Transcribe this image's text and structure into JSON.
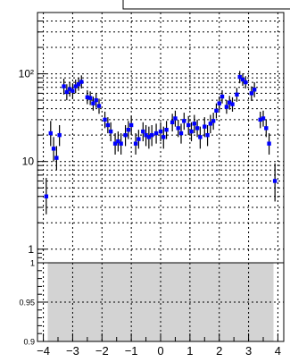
{
  "chart_data": [
    {
      "type": "scatter",
      "yscale": "log",
      "xlim": [
        -4.2,
        4.2
      ],
      "ylim": [
        0.7,
        500
      ],
      "grid": true,
      "yticks": [
        {
          "value": 1,
          "label": "1"
        },
        {
          "value": 10,
          "label": "10"
        },
        {
          "value": 100,
          "label": "10²"
        }
      ],
      "series": [
        {
          "marker_color": "#0000ff",
          "points": [
            {
              "x": -3.9,
              "y": 4.0,
              "lo": 2.5,
              "hi": 6.5
            },
            {
              "x": -3.75,
              "y": 21,
              "lo": 15,
              "hi": 29
            },
            {
              "x": -3.65,
              "y": 14,
              "lo": 10,
              "hi": 19
            },
            {
              "x": -3.55,
              "y": 11,
              "lo": 8,
              "hi": 15
            },
            {
              "x": -3.45,
              "y": 20,
              "lo": 15,
              "hi": 26
            },
            {
              "x": -3.3,
              "y": 72,
              "lo": 58,
              "hi": 88
            },
            {
              "x": -3.2,
              "y": 62,
              "lo": 50,
              "hi": 76
            },
            {
              "x": -3.1,
              "y": 67,
              "lo": 55,
              "hi": 81
            },
            {
              "x": -3.0,
              "y": 64,
              "lo": 52,
              "hi": 78
            },
            {
              "x": -2.9,
              "y": 72,
              "lo": 60,
              "hi": 86
            },
            {
              "x": -2.8,
              "y": 76,
              "lo": 64,
              "hi": 90
            },
            {
              "x": -2.7,
              "y": 81,
              "lo": 68,
              "hi": 96
            },
            {
              "x": -2.5,
              "y": 54,
              "lo": 45,
              "hi": 65
            },
            {
              "x": -2.4,
              "y": 53,
              "lo": 44,
              "hi": 63
            },
            {
              "x": -2.3,
              "y": 46,
              "lo": 38,
              "hi": 55
            },
            {
              "x": -2.2,
              "y": 50,
              "lo": 41,
              "hi": 60
            },
            {
              "x": -2.1,
              "y": 43,
              "lo": 35,
              "hi": 52
            },
            {
              "x": -1.9,
              "y": 30,
              "lo": 24,
              "hi": 37
            },
            {
              "x": -1.8,
              "y": 26,
              "lo": 21,
              "hi": 32
            },
            {
              "x": -1.7,
              "y": 22,
              "lo": 17,
              "hi": 28
            },
            {
              "x": -1.55,
              "y": 16,
              "lo": 12,
              "hi": 21
            },
            {
              "x": -1.45,
              "y": 17,
              "lo": 13,
              "hi": 22
            },
            {
              "x": -1.35,
              "y": 16,
              "lo": 12,
              "hi": 21
            },
            {
              "x": -1.2,
              "y": 20,
              "lo": 15,
              "hi": 26
            },
            {
              "x": -1.1,
              "y": 23,
              "lo": 18,
              "hi": 29
            },
            {
              "x": -1.0,
              "y": 26,
              "lo": 20,
              "hi": 33
            },
            {
              "x": -0.85,
              "y": 16,
              "lo": 12,
              "hi": 21
            },
            {
              "x": -0.75,
              "y": 18,
              "lo": 14,
              "hi": 23
            },
            {
              "x": -0.6,
              "y": 22,
              "lo": 17,
              "hi": 28
            },
            {
              "x": -0.5,
              "y": 20,
              "lo": 15,
              "hi": 26
            },
            {
              "x": -0.4,
              "y": 19,
              "lo": 14,
              "hi": 25
            },
            {
              "x": -0.3,
              "y": 20,
              "lo": 15,
              "hi": 26
            },
            {
              "x": -0.15,
              "y": 21,
              "lo": 16,
              "hi": 27
            },
            {
              "x": 0.0,
              "y": 22,
              "lo": 17,
              "hi": 28
            },
            {
              "x": 0.1,
              "y": 19,
              "lo": 14,
              "hi": 25
            },
            {
              "x": 0.2,
              "y": 23,
              "lo": 18,
              "hi": 29
            },
            {
              "x": 0.4,
              "y": 28,
              "lo": 22,
              "hi": 35
            },
            {
              "x": 0.5,
              "y": 31,
              "lo": 25,
              "hi": 38
            },
            {
              "x": 0.6,
              "y": 24,
              "lo": 19,
              "hi": 30
            },
            {
              "x": 0.7,
              "y": 21,
              "lo": 16,
              "hi": 27
            },
            {
              "x": 0.8,
              "y": 29,
              "lo": 23,
              "hi": 36
            },
            {
              "x": 0.95,
              "y": 26,
              "lo": 20,
              "hi": 33
            },
            {
              "x": 1.05,
              "y": 22,
              "lo": 17,
              "hi": 28
            },
            {
              "x": 1.15,
              "y": 27,
              "lo": 21,
              "hi": 34
            },
            {
              "x": 1.25,
              "y": 24,
              "lo": 19,
              "hi": 30
            },
            {
              "x": 1.35,
              "y": 19,
              "lo": 14,
              "hi": 25
            },
            {
              "x": 1.5,
              "y": 25,
              "lo": 19,
              "hi": 32
            },
            {
              "x": 1.6,
              "y": 20,
              "lo": 15,
              "hi": 26
            },
            {
              "x": 1.7,
              "y": 27,
              "lo": 21,
              "hi": 34
            },
            {
              "x": 1.8,
              "y": 29,
              "lo": 23,
              "hi": 36
            },
            {
              "x": 1.9,
              "y": 38,
              "lo": 31,
              "hi": 46
            },
            {
              "x": 2.0,
              "y": 46,
              "lo": 38,
              "hi": 55
            },
            {
              "x": 2.1,
              "y": 55,
              "lo": 46,
              "hi": 65
            },
            {
              "x": 2.25,
              "y": 42,
              "lo": 35,
              "hi": 50
            },
            {
              "x": 2.35,
              "y": 47,
              "lo": 39,
              "hi": 56
            },
            {
              "x": 2.45,
              "y": 45,
              "lo": 37,
              "hi": 54
            },
            {
              "x": 2.6,
              "y": 58,
              "lo": 48,
              "hi": 69
            },
            {
              "x": 2.7,
              "y": 92,
              "lo": 78,
              "hi": 108
            },
            {
              "x": 2.8,
              "y": 86,
              "lo": 73,
              "hi": 101
            },
            {
              "x": 2.9,
              "y": 80,
              "lo": 68,
              "hi": 94
            },
            {
              "x": 3.1,
              "y": 60,
              "lo": 49,
              "hi": 72
            },
            {
              "x": 3.2,
              "y": 66,
              "lo": 54,
              "hi": 80
            },
            {
              "x": 3.4,
              "y": 30,
              "lo": 24,
              "hi": 37
            },
            {
              "x": 3.5,
              "y": 31,
              "lo": 25,
              "hi": 38
            },
            {
              "x": 3.6,
              "y": 24,
              "lo": 19,
              "hi": 30
            },
            {
              "x": 3.7,
              "y": 16,
              "lo": 12,
              "hi": 21
            },
            {
              "x": 3.9,
              "y": 6.0,
              "lo": 3.5,
              "hi": 9.5
            }
          ]
        }
      ]
    },
    {
      "type": "area",
      "xlim": [
        -4.2,
        4.2
      ],
      "ylim": [
        0.9,
        1.0
      ],
      "grid": true,
      "yticks": [
        {
          "value": 0.9,
          "label": "0.9"
        },
        {
          "value": 0.95,
          "label": "0.95"
        },
        {
          "value": 1.0,
          "label": "1"
        }
      ],
      "xticks": [
        {
          "value": -4,
          "label": "−4"
        },
        {
          "value": -3,
          "label": "−3"
        },
        {
          "value": -2,
          "label": "−2"
        },
        {
          "value": -1,
          "label": "−1"
        },
        {
          "value": 0,
          "label": "0"
        },
        {
          "value": 1,
          "label": "1"
        },
        {
          "value": 2,
          "label": "2"
        },
        {
          "value": 3,
          "label": "3"
        },
        {
          "value": 4,
          "label": "4"
        }
      ],
      "band": {
        "x0": -3.85,
        "x1": 3.85,
        "y0": 0.9,
        "y1": 1.0,
        "color": "#d3d3d3"
      }
    }
  ]
}
